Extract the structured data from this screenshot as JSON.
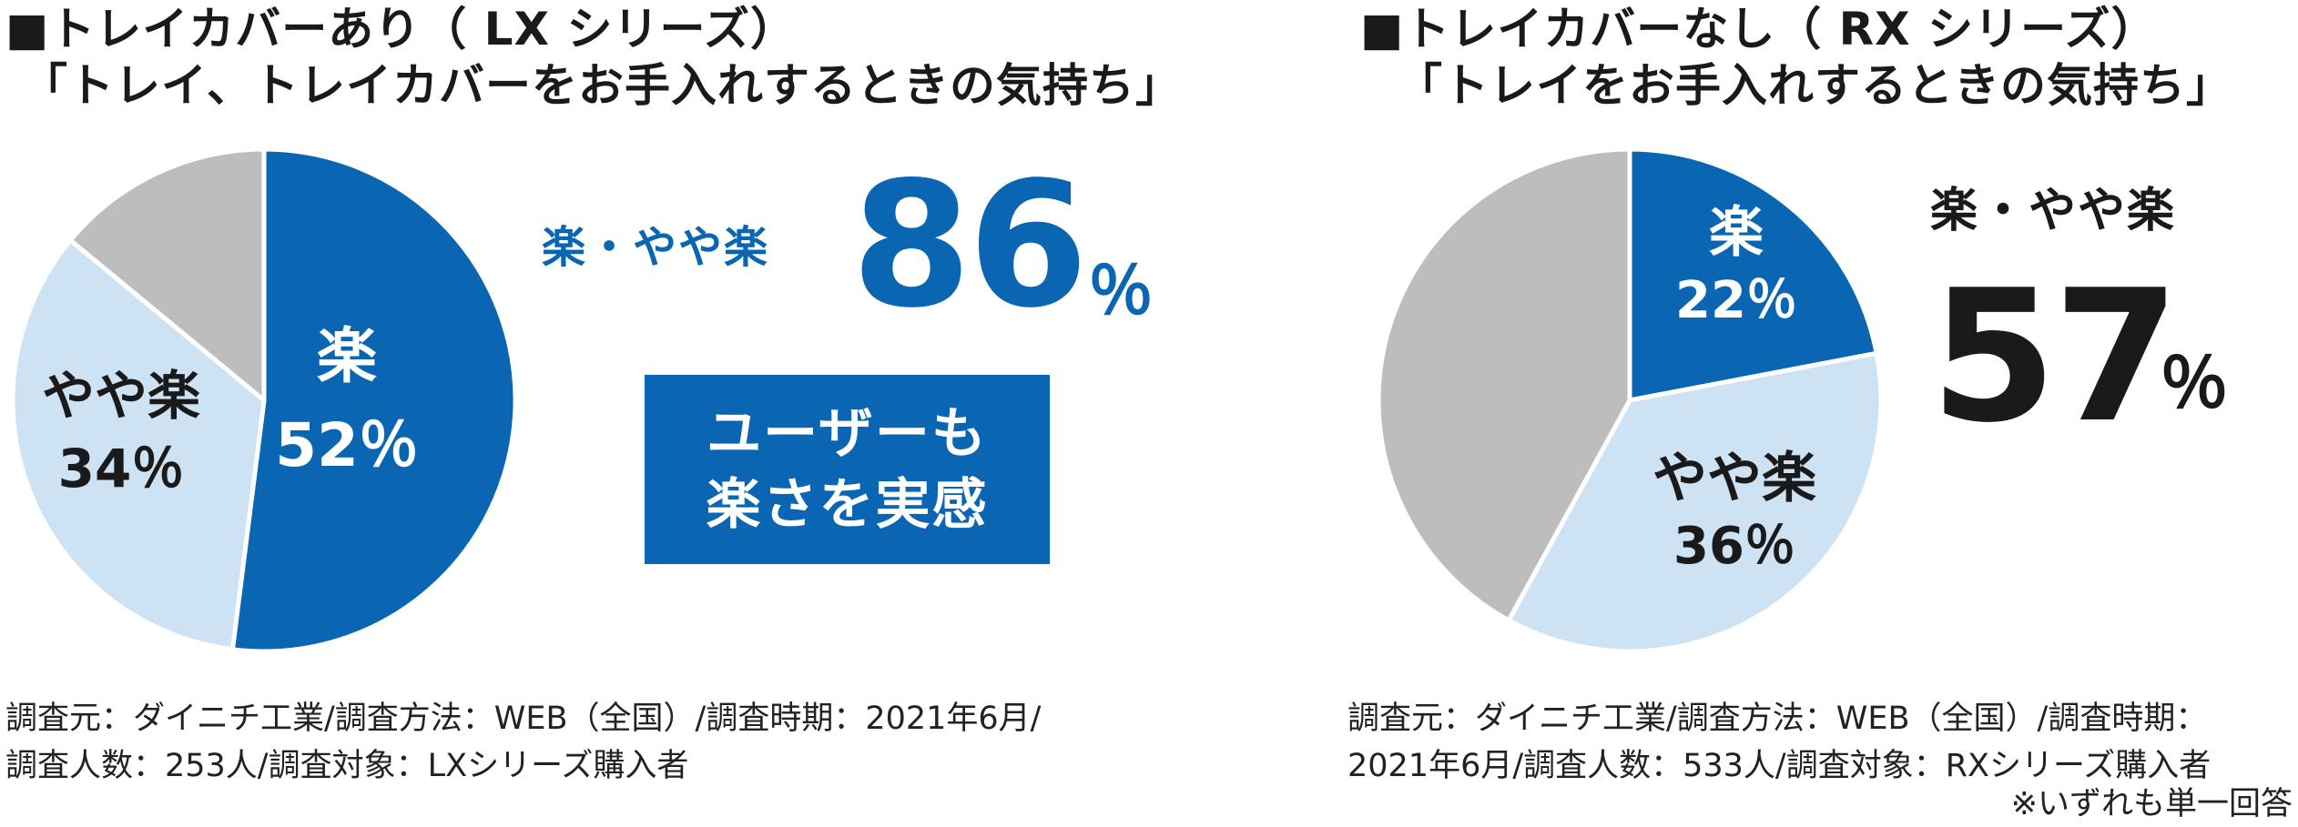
{
  "left": {
    "title_line1": "■トレイカバーあり（ LX シリーズ）",
    "title_line2": "「トレイ、トレイカバーをお手入れするときの気持ち」",
    "summary_label": "楽・やや楽",
    "summary_value": "86",
    "summary_unit": "％",
    "callout_line1": "ユーザーも",
    "callout_line2": "楽さを実感",
    "footnote_line1": "調査元：ダイニチ工業/調査方法：WEB（全国）/調査時期：2021年6月/",
    "footnote_line2": "調査人数：253人/調査対象：LXシリーズ購入者"
  },
  "right": {
    "title_line1": "■トレイカバーなし（ RX シリーズ）",
    "title_line2": "「トレイをお手入れするときの気持ち」",
    "summary_label": "楽・やや楽",
    "summary_value": "57",
    "summary_unit": "％",
    "footnote_line1": "調査元：ダイニチ工業/調査方法：WEB（全国）/調査時期：",
    "footnote_line2": "2021年6月/調査人数：533人/調査対象：RXシリーズ購入者",
    "note": "※いずれも単一回答"
  },
  "colors": {
    "raku": "#0a65b2",
    "yaya_raku": "#cde2f2",
    "other": "#bdbdbd",
    "summary_blue": "#0a65b2",
    "summary_dark": "#1a1a1a"
  },
  "chart_data": [
    {
      "type": "pie",
      "slices": [
        {
          "label": "楽",
          "value": 52,
          "value_text": "52％"
        },
        {
          "label": "やや楽",
          "value": 34,
          "value_text": "34％"
        },
        {
          "label": "",
          "value": 14,
          "value_text": ""
        }
      ]
    },
    {
      "type": "pie",
      "slices": [
        {
          "label": "楽",
          "value": 22,
          "value_text": "22％"
        },
        {
          "label": "やや楽",
          "value": 36,
          "value_text": "36％"
        },
        {
          "label": "",
          "value": 42,
          "value_text": ""
        }
      ]
    }
  ]
}
